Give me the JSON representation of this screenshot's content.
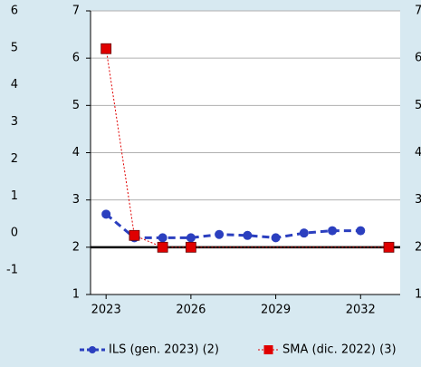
{
  "chart_data": [
    {
      "type": "axis",
      "yticks": [
        6,
        5,
        4,
        3,
        2,
        1,
        0,
        -1
      ],
      "ylim": [
        -1,
        6
      ]
    },
    {
      "type": "line",
      "x": [
        2023,
        2024,
        2025,
        2026,
        2027,
        2028,
        2029,
        2030,
        2031,
        2032,
        2033
      ],
      "series": [
        {
          "name": "ILS (gen. 2023) (2)",
          "color": "#2b3fbf",
          "values": [
            2.7,
            2.2,
            2.2,
            2.2,
            2.27,
            2.25,
            2.2,
            2.3,
            2.35,
            2.35,
            null
          ]
        },
        {
          "name": "SMA (dic. 2022) (3)",
          "color": "#e00000",
          "values": [
            6.2,
            2.25,
            2.0,
            2.0,
            null,
            null,
            null,
            null,
            null,
            null,
            2.0
          ]
        }
      ],
      "xlim": [
        2022.45,
        2033.4
      ],
      "xticks": [
        2023,
        2026,
        2029,
        2032
      ],
      "ylim": [
        1,
        7
      ],
      "yticks": [
        1,
        2,
        3,
        4,
        5,
        6,
        7
      ],
      "y2lim": [
        1,
        7
      ],
      "y2ticks": [
        1,
        2,
        3,
        4,
        5,
        6,
        7
      ],
      "reference_line": 2,
      "grid": true,
      "legend": "bottom"
    }
  ]
}
